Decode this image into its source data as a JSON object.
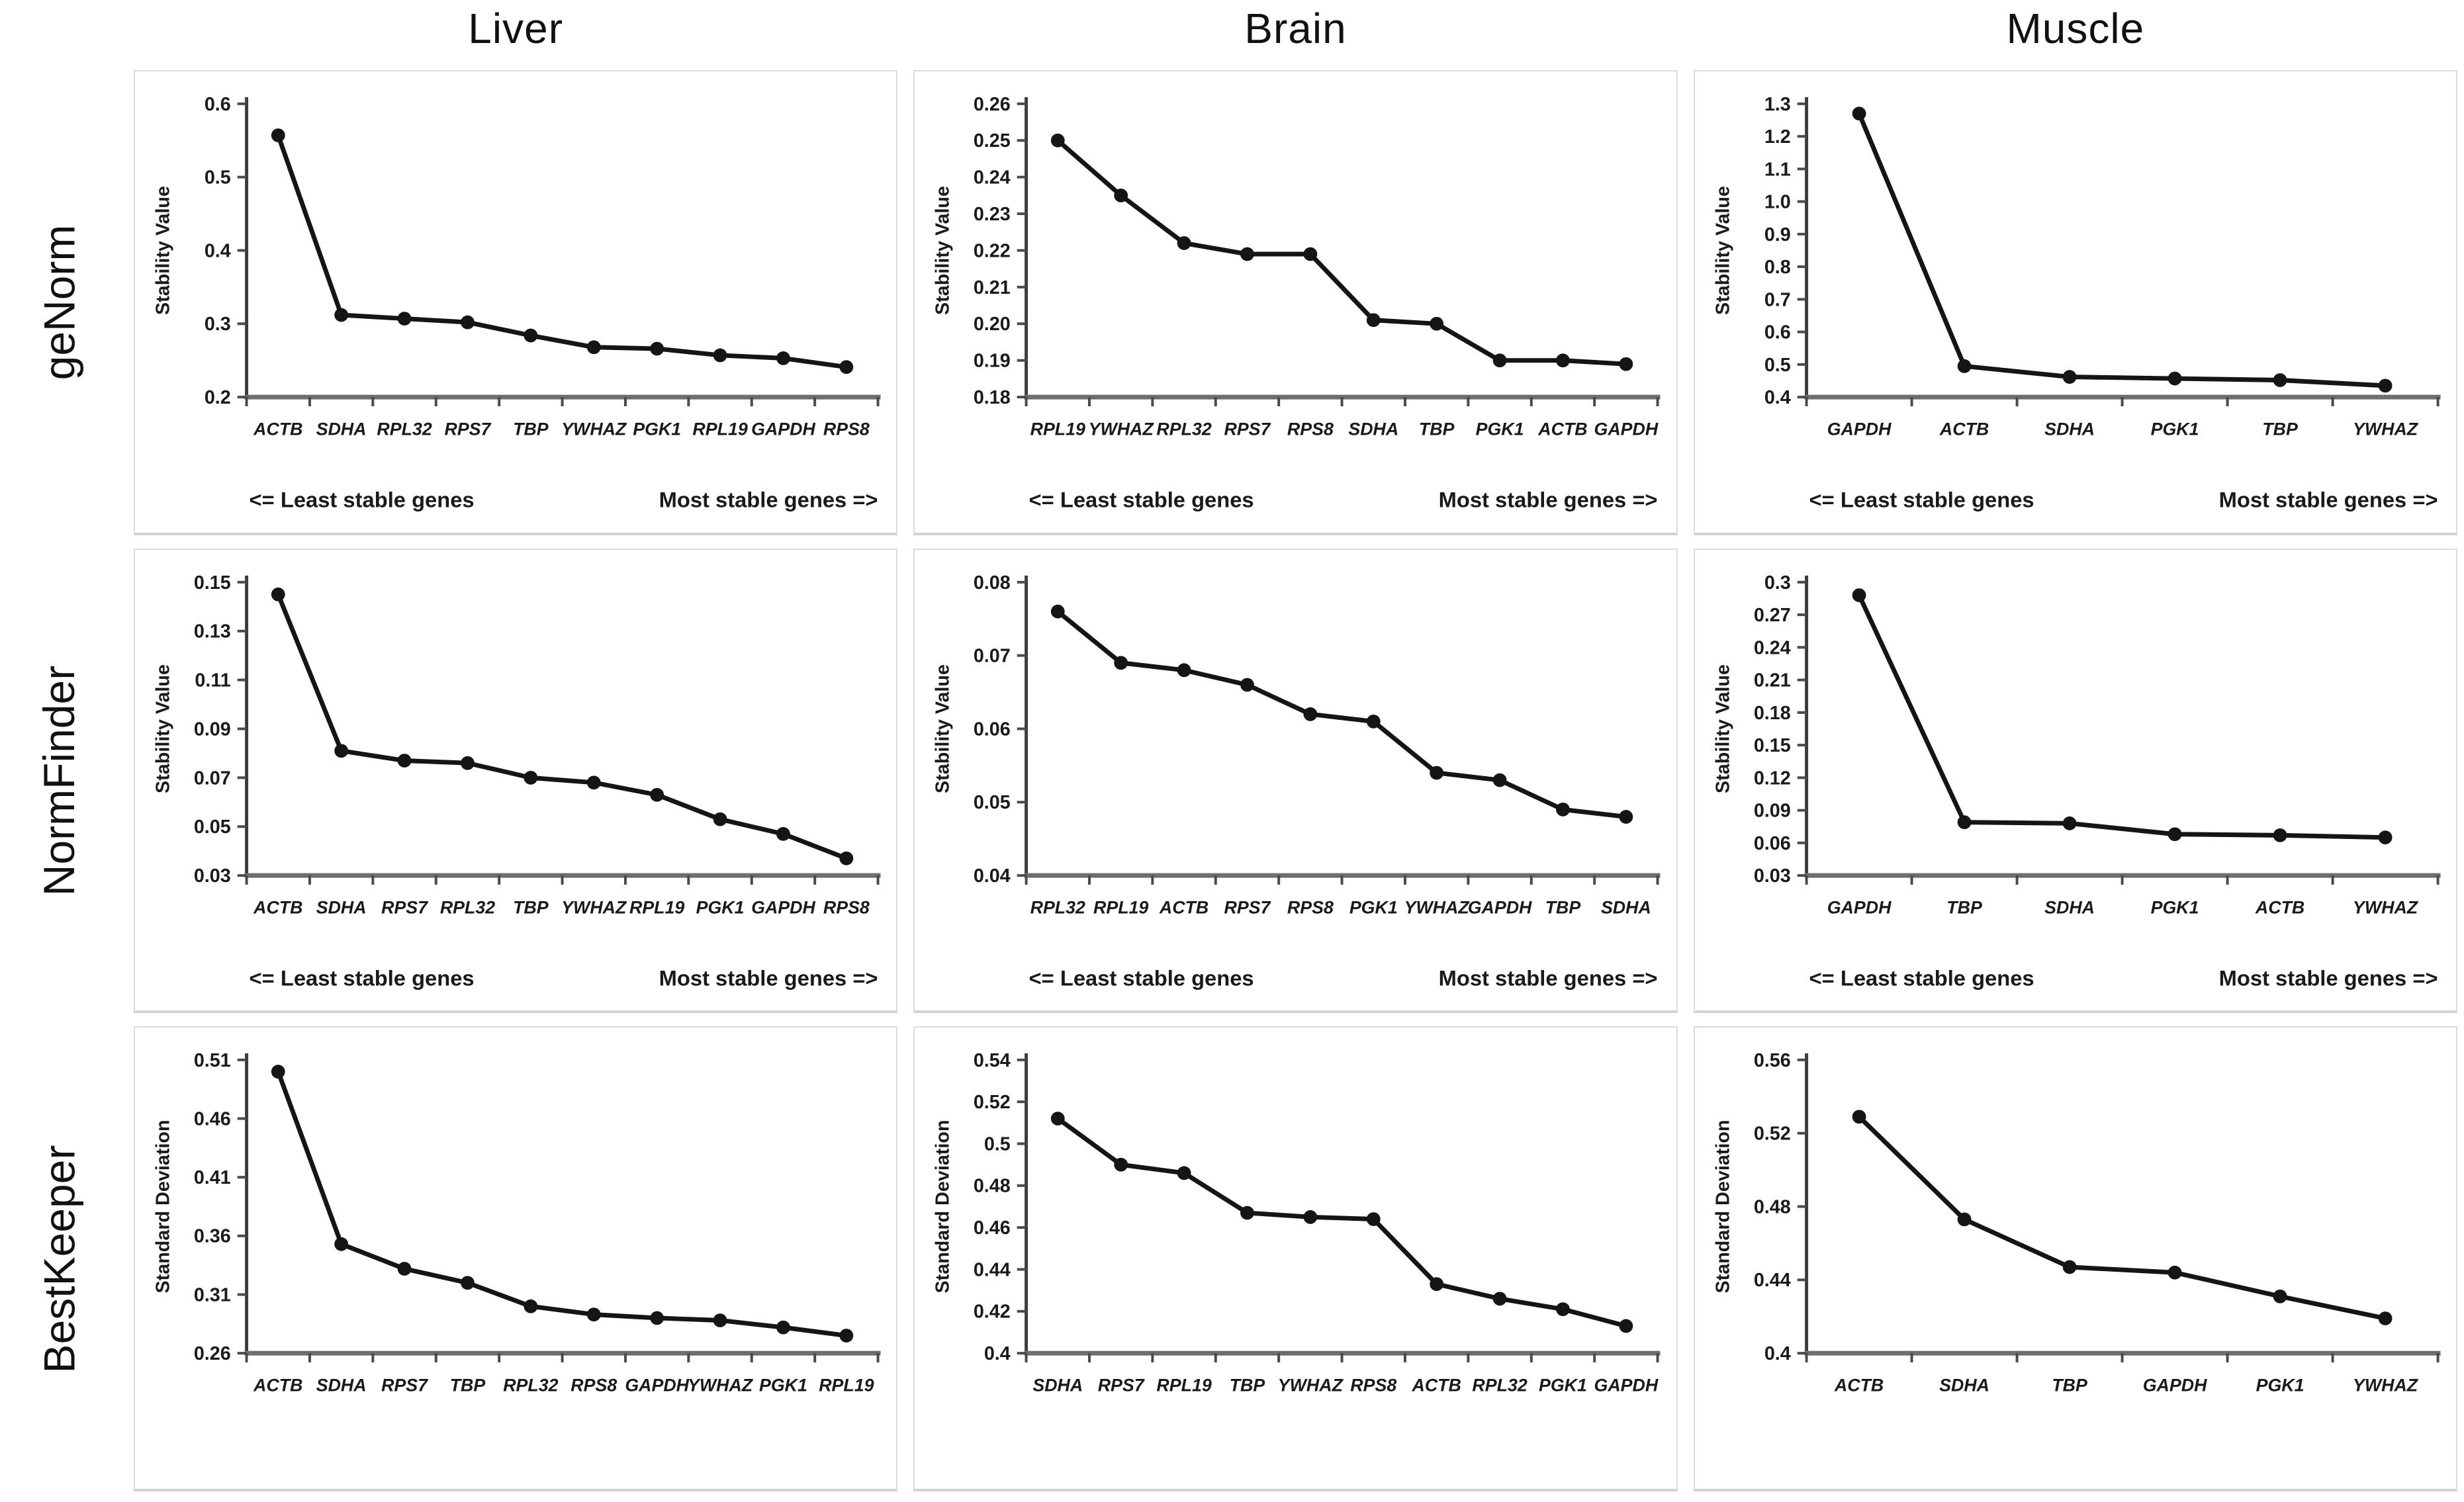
{
  "columns": [
    "Liver",
    "Brain",
    "Muscle"
  ],
  "rows": [
    "geNorm",
    "NormFinder",
    "BestKeeper"
  ],
  "captions": {
    "least": "<= Least stable genes",
    "most": "Most stable genes =>"
  },
  "colors": {
    "line": "#151515",
    "marker": "#151515",
    "axis_x": "#6e6e6e",
    "axis_y": "#3c3c3c",
    "tick": "#4a4a4a",
    "text": "#1a1a1a",
    "panel_border": "#dcdcdc"
  },
  "chart_data": [
    {
      "type": "line",
      "row": "geNorm",
      "column": "Liver",
      "title": "Liver geNorm",
      "ylabel": "Stability Value",
      "categories": [
        "ACTB",
        "SDHA",
        "RPL32",
        "RPS7",
        "TBP",
        "YWHAZ",
        "PGK1",
        "RPL19",
        "GAPDH",
        "RPS8"
      ],
      "values": [
        0.557,
        0.312,
        0.307,
        0.302,
        0.284,
        0.268,
        0.266,
        0.257,
        0.253,
        0.241
      ],
      "yticks": [
        "0.2",
        "0.3",
        "0.4",
        "0.5",
        "0.6"
      ],
      "ylim": [
        0.2,
        0.6
      ],
      "grid": false,
      "legend": "none",
      "footer_left": "<= Least stable genes",
      "footer_right": "Most stable genes =>",
      "show_footer": true
    },
    {
      "type": "line",
      "row": "geNorm",
      "column": "Brain",
      "title": "Brain geNorm",
      "ylabel": "Stability Value",
      "categories": [
        "RPL19",
        "YWHAZ",
        "RPL32",
        "RPS7",
        "RPS8",
        "SDHA",
        "TBP",
        "PGK1",
        "ACTB",
        "GAPDH"
      ],
      "values": [
        0.25,
        0.235,
        0.222,
        0.219,
        0.219,
        0.201,
        0.2,
        0.19,
        0.19,
        0.189
      ],
      "yticks": [
        "0.18",
        "0.19",
        "0.20",
        "0.21",
        "0.22",
        "0.23",
        "0.24",
        "0.25",
        "0.26"
      ],
      "ylim": [
        0.18,
        0.26
      ],
      "grid": false,
      "legend": "none",
      "footer_left": "<= Least stable genes",
      "footer_right": "Most stable genes =>",
      "show_footer": true
    },
    {
      "type": "line",
      "row": "geNorm",
      "column": "Muscle",
      "title": "Muscle geNorm",
      "ylabel": "Stability Value",
      "categories": [
        "GAPDH",
        "ACTB",
        "SDHA",
        "PGK1",
        "TBP",
        "YWHAZ"
      ],
      "values": [
        1.27,
        0.495,
        0.462,
        0.457,
        0.452,
        0.435
      ],
      "yticks": [
        "0.4",
        "0.5",
        "0.6",
        "0.7",
        "0.8",
        "0.9",
        "1.0",
        "1.1",
        "1.2",
        "1.3"
      ],
      "ylim": [
        0.4,
        1.3
      ],
      "grid": false,
      "legend": "none",
      "footer_left": "<= Least stable genes",
      "footer_right": "Most stable genes =>",
      "show_footer": true
    },
    {
      "type": "line",
      "row": "NormFinder",
      "column": "Liver",
      "title": "Liver NormFinder",
      "ylabel": "Stability Value",
      "categories": [
        "ACTB",
        "SDHA",
        "RPS7",
        "RPL32",
        "TBP",
        "YWHAZ",
        "RPL19",
        "PGK1",
        "GAPDH",
        "RPS8"
      ],
      "values": [
        0.145,
        0.081,
        0.077,
        0.076,
        0.07,
        0.068,
        0.063,
        0.053,
        0.047,
        0.037
      ],
      "yticks": [
        "0.03",
        "0.05",
        "0.07",
        "0.09",
        "0.11",
        "0.13",
        "0.15"
      ],
      "ylim": [
        0.03,
        0.15
      ],
      "grid": false,
      "legend": "none",
      "footer_left": "<= Least stable genes",
      "footer_right": "Most stable genes =>",
      "show_footer": true
    },
    {
      "type": "line",
      "row": "NormFinder",
      "column": "Brain",
      "title": "Brain NormFinder",
      "ylabel": "Stability Value",
      "categories": [
        "RPL32",
        "RPL19",
        "ACTB",
        "RPS7",
        "RPS8",
        "PGK1",
        "YWHAZ",
        "GAPDH",
        "TBP",
        "SDHA"
      ],
      "values": [
        0.076,
        0.069,
        0.068,
        0.066,
        0.062,
        0.061,
        0.054,
        0.053,
        0.049,
        0.048
      ],
      "yticks": [
        "0.04",
        "0.05",
        "0.06",
        "0.07",
        "0.08"
      ],
      "ylim": [
        0.04,
        0.08
      ],
      "grid": false,
      "legend": "none",
      "footer_left": "<= Least stable genes",
      "footer_right": "Most stable genes =>",
      "show_footer": true
    },
    {
      "type": "line",
      "row": "NormFinder",
      "column": "Muscle",
      "title": "Muscle NormFinder",
      "ylabel": "Stability Value",
      "categories": [
        "GAPDH",
        "TBP",
        "SDHA",
        "PGK1",
        "ACTB",
        "YWHAZ"
      ],
      "values": [
        0.288,
        0.079,
        0.078,
        0.068,
        0.067,
        0.065
      ],
      "yticks": [
        "0.03",
        "0.06",
        "0.09",
        "0.12",
        "0.15",
        "0.18",
        "0.21",
        "0.24",
        "0.27",
        "0.3"
      ],
      "ylim": [
        0.03,
        0.3
      ],
      "grid": false,
      "legend": "none",
      "footer_left": "<= Least stable genes",
      "footer_right": "Most stable genes =>",
      "show_footer": true
    },
    {
      "type": "line",
      "row": "BestKeeper",
      "column": "Liver",
      "title": "Liver BestKeeper",
      "ylabel": "Standard Deviation",
      "categories": [
        "ACTB",
        "SDHA",
        "RPS7",
        "TBP",
        "RPL32",
        "RPS8",
        "GAPDH",
        "YWHAZ",
        "PGK1",
        "RPL19"
      ],
      "values": [
        0.5,
        0.353,
        0.332,
        0.32,
        0.3,
        0.293,
        0.29,
        0.288,
        0.282,
        0.275
      ],
      "yticks": [
        "0.26",
        "0.31",
        "0.36",
        "0.41",
        "0.46",
        "0.51"
      ],
      "ylim": [
        0.26,
        0.51
      ],
      "grid": false,
      "legend": "none",
      "footer_left": "",
      "footer_right": "",
      "show_footer": false
    },
    {
      "type": "line",
      "row": "BestKeeper",
      "column": "Brain",
      "title": "Brain BestKeeper",
      "ylabel": "Standard Deviation",
      "categories": [
        "SDHA",
        "RPS7",
        "RPL19",
        "TBP",
        "YWHAZ",
        "RPS8",
        "ACTB",
        "RPL32",
        "PGK1",
        "GAPDH"
      ],
      "values": [
        0.512,
        0.49,
        0.486,
        0.467,
        0.465,
        0.464,
        0.433,
        0.426,
        0.421,
        0.413
      ],
      "yticks": [
        "0.4",
        "0.42",
        "0.44",
        "0.46",
        "0.48",
        "0.5",
        "0.52",
        "0.54"
      ],
      "ylim": [
        0.4,
        0.54
      ],
      "grid": false,
      "legend": "none",
      "footer_left": "",
      "footer_right": "",
      "show_footer": false
    },
    {
      "type": "line",
      "row": "BestKeeper",
      "column": "Muscle",
      "title": "Muscle BestKeeper",
      "ylabel": "Standard Deviation",
      "categories": [
        "ACTB",
        "SDHA",
        "TBP",
        "GAPDH",
        "PGK1",
        "YWHAZ"
      ],
      "values": [
        0.529,
        0.473,
        0.447,
        0.444,
        0.431,
        0.419
      ],
      "yticks": [
        "0.4",
        "0.44",
        "0.48",
        "0.52",
        "0.56"
      ],
      "ylim": [
        0.4,
        0.56
      ],
      "grid": false,
      "legend": "none",
      "footer_left": "",
      "footer_right": "",
      "show_footer": false
    }
  ]
}
